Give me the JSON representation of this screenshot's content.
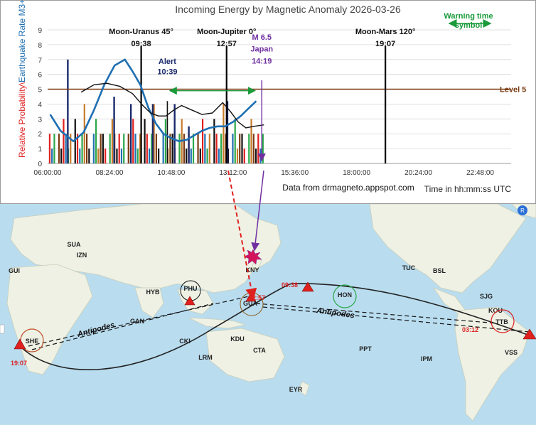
{
  "chart_data": {
    "type": "bar",
    "title": "Incoming Energy by Magnetic Anomaly 2026-03-26",
    "ylabel_red": "Relative Probability\\",
    "ylabel_blue": "Earthquake Rate M3+/h/2",
    "xlabel": "Time in hh:mm:ss UTC",
    "source": "Data from drmagneto.appspot.com",
    "x_ticks": [
      "06:00:00",
      "08:24:00",
      "10:48:00",
      "13:12:00",
      "15:36:00",
      "18:00:00",
      "20:24:00",
      "22:48:00"
    ],
    "y_ticks": [
      "0",
      "1",
      "2",
      "3",
      "4",
      "5",
      "6",
      "7",
      "8",
      "9"
    ],
    "ylim": [
      0,
      9
    ],
    "xlim_hours": [
      6,
      24
    ],
    "level_line": {
      "value": 5,
      "label": "Level 5",
      "color": "#7a3b12"
    },
    "warning_legend": {
      "label": "Warning time symbol",
      "color": "#1a9a3a"
    },
    "events": [
      {
        "label": "Moon-Uranus 45°",
        "time_label": "09:38",
        "hour": 9.633,
        "color": "#000000"
      },
      {
        "label": "Moon-Jupiter 0°",
        "time_label": "12:57",
        "hour": 12.95,
        "color": "#000000"
      },
      {
        "label": "Moon-Mars 120°",
        "time_label": "19:07",
        "hour": 19.117,
        "color": "#000000"
      }
    ],
    "alert": {
      "label": "Alert",
      "time_label": "10:39",
      "hour": 10.65
    },
    "quake": {
      "label": "M 6.5",
      "place": "Japan",
      "time_label": "14:19",
      "hour": 14.317,
      "color": "#7030a0"
    },
    "warning_window_hours": [
      10.75,
      14.05
    ],
    "series": [
      {
        "name": "blue-curve",
        "color": "#1f6fb2",
        "x": [
          6.1,
          6.5,
          7.0,
          7.4,
          7.8,
          8.2,
          8.6,
          9.0,
          9.3,
          9.6,
          9.9,
          10.2,
          10.5,
          10.8,
          11.1,
          11.4,
          11.7,
          12.0,
          12.3,
          12.6,
          12.9,
          13.2,
          13.5,
          13.8,
          14.1
        ],
        "y": [
          3.3,
          2.2,
          1.5,
          2.1,
          3.6,
          5.3,
          6.6,
          7.0,
          6.2,
          5.3,
          3.8,
          2.7,
          2.0,
          1.7,
          1.5,
          1.6,
          1.9,
          2.2,
          2.4,
          2.5,
          2.5,
          2.8,
          3.2,
          3.7,
          4.2
        ]
      },
      {
        "name": "black-curve",
        "color": "#111111",
        "x": [
          7.3,
          7.8,
          8.3,
          8.8,
          9.3,
          9.7,
          10.0,
          10.3,
          10.6,
          10.9,
          11.2,
          11.6,
          12.0,
          12.4,
          12.8,
          13.1,
          13.4,
          13.7,
          14.0,
          14.4
        ],
        "y": [
          4.8,
          5.3,
          5.4,
          5.2,
          4.7,
          3.9,
          3.4,
          3.2,
          3.2,
          3.6,
          3.9,
          3.6,
          3.3,
          3.4,
          4.1,
          3.5,
          2.8,
          2.4,
          2.5,
          2.6
        ]
      }
    ]
  },
  "map": {
    "stations": [
      {
        "code": "SUA"
      },
      {
        "code": "IZN"
      },
      {
        "code": "GUI"
      },
      {
        "code": "HYB"
      },
      {
        "code": "PHU"
      },
      {
        "code": "KNY"
      },
      {
        "code": "GAN"
      },
      {
        "code": "CKI"
      },
      {
        "code": "LRM"
      },
      {
        "code": "KDU"
      },
      {
        "code": "CTA"
      },
      {
        "code": "EYR"
      },
      {
        "code": "GUA"
      },
      {
        "code": "HON"
      },
      {
        "code": "TUC"
      },
      {
        "code": "BSL"
      },
      {
        "code": "SJG"
      },
      {
        "code": "KOU"
      },
      {
        "code": "TTB"
      },
      {
        "code": "VSS"
      },
      {
        "code": "PPT"
      },
      {
        "code": "IPM"
      },
      {
        "code": "SHE"
      }
    ],
    "time_labels": [
      "12:57",
      "09:38",
      "03:12",
      "19:07"
    ],
    "antipodes_labels": [
      "Antipodes",
      "Antipodes"
    ]
  }
}
